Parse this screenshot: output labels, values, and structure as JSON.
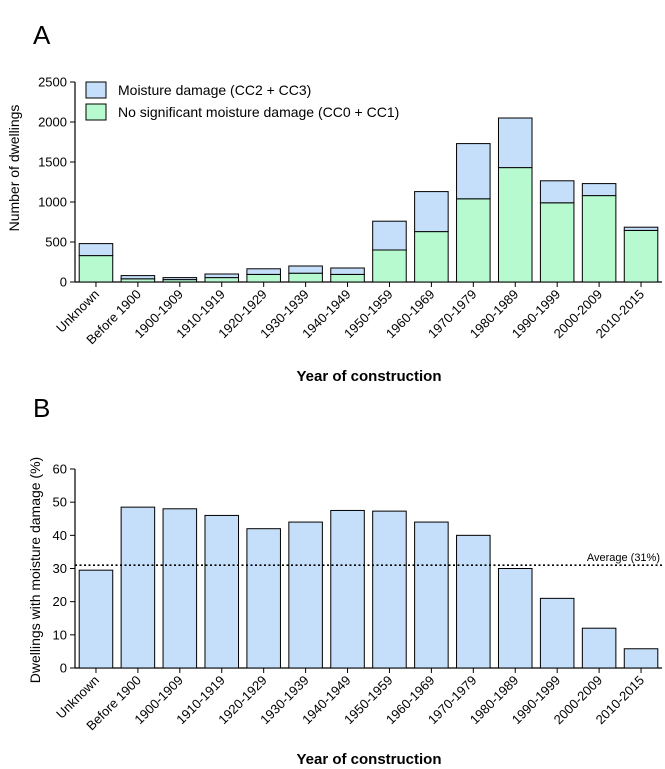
{
  "colors": {
    "damage": "#c5defa",
    "no_damage": "#b8fad0",
    "stroke": "#000000"
  },
  "chart_data": [
    {
      "panel_label": "A",
      "type": "bar",
      "stacked": true,
      "categories": [
        "Unknown",
        "Before 1900",
        "1900-1909",
        "1910-1919",
        "1920-1929",
        "1930-1939",
        "1940-1949",
        "1950-1959",
        "1960-1969",
        "1970-1979",
        "1980-1989",
        "1990-1999",
        "2000-2009",
        "2010-2015"
      ],
      "series": [
        {
          "name": "No significant moisture damage (CC0 + CC1)",
          "values": [
            330,
            40,
            30,
            55,
            95,
            110,
            95,
            400,
            630,
            1040,
            1430,
            990,
            1080,
            645
          ]
        },
        {
          "name": "Moisture damage (CC2 + CC3)",
          "values": [
            150,
            40,
            25,
            45,
            70,
            90,
            80,
            360,
            500,
            690,
            620,
            275,
            150,
            40
          ]
        }
      ],
      "ylabel": "Number of dwellings",
      "xlabel": "Year of  construction",
      "ylim": [
        0,
        2500
      ],
      "yticks": [
        0,
        500,
        1000,
        1500,
        2000,
        2500
      ],
      "ytick_labels": [
        "0",
        "500",
        "1000",
        "1500",
        "2000",
        "2500"
      ],
      "legend": "top-left",
      "grid": false
    },
    {
      "panel_label": "B",
      "type": "bar",
      "categories": [
        "Unknown",
        "Before 1900",
        "1900-1909",
        "1910-1919",
        "1920-1929",
        "1930-1939",
        "1940-1949",
        "1950-1959",
        "1960-1969",
        "1970-1979",
        "1980-1989",
        "1990-1999",
        "2000-2009",
        "2010-2015"
      ],
      "values": [
        29.5,
        48.5,
        48,
        46,
        42,
        44,
        47.5,
        47.3,
        44,
        40,
        30,
        21,
        12,
        5.8
      ],
      "ylabel": "Dwellings with moisture damage (%)",
      "xlabel": "Year of construction",
      "ylim": [
        0,
        60
      ],
      "yticks": [
        0,
        10,
        20,
        30,
        40,
        50,
        60
      ],
      "ytick_labels": [
        "0",
        "10",
        "20",
        "30",
        "40",
        "50",
        "60"
      ],
      "reference_line": {
        "value": 31,
        "label": "Average (31%)"
      },
      "grid": false
    }
  ]
}
